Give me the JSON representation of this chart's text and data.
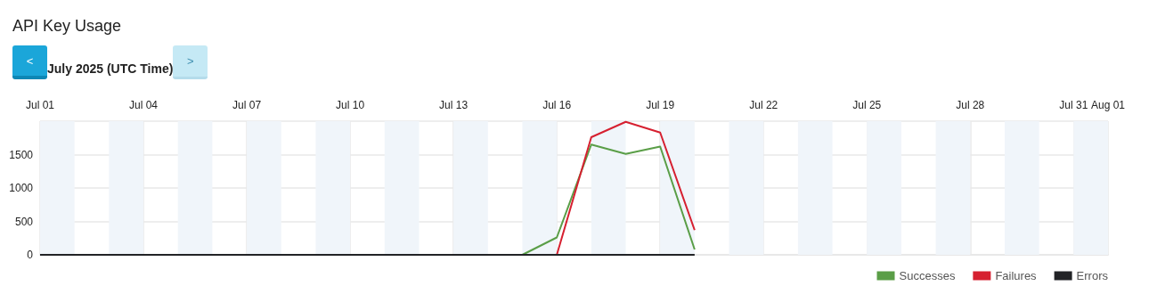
{
  "chart_data": {
    "type": "line",
    "title": "API Key Usage",
    "subtitle": "July 2025 (UTC Time)",
    "annotations": [
      "<",
      ">"
    ],
    "x": [
      "2025-07-01",
      "2025-07-02",
      "2025-07-03",
      "2025-07-04",
      "2025-07-05",
      "2025-07-06",
      "2025-07-07",
      "2025-07-08",
      "2025-07-09",
      "2025-07-10",
      "2025-07-11",
      "2025-07-12",
      "2025-07-13",
      "2025-07-14",
      "2025-07-15",
      "2025-07-16",
      "2025-07-17",
      "2025-07-18",
      "2025-07-19",
      "2025-07-20"
    ],
    "series": [
      {
        "name": "Successes",
        "color": "#5a9e47",
        "values": [
          null,
          null,
          null,
          null,
          null,
          null,
          null,
          null,
          null,
          null,
          null,
          null,
          null,
          null,
          0,
          260,
          1650,
          1510,
          1620,
          80
        ]
      },
      {
        "name": "Failures",
        "color": "#d62030",
        "values": [
          null,
          null,
          null,
          null,
          null,
          null,
          null,
          null,
          null,
          null,
          null,
          null,
          null,
          null,
          null,
          0,
          1760,
          1990,
          1830,
          370
        ]
      },
      {
        "name": "Errors",
        "color": "#222326",
        "values": [
          0,
          0,
          0,
          0,
          0,
          0,
          0,
          0,
          0,
          0,
          0,
          0,
          0,
          0,
          0,
          0,
          0,
          0,
          0,
          0
        ]
      }
    ],
    "xlim": [
      "2025-07-01",
      "2025-08-01"
    ],
    "xticks": [
      {
        "value": "2025-07-01",
        "label": "Jul 01"
      },
      {
        "value": "2025-07-04",
        "label": "Jul 04"
      },
      {
        "value": "2025-07-07",
        "label": "Jul 07"
      },
      {
        "value": "2025-07-10",
        "label": "Jul 10"
      },
      {
        "value": "2025-07-13",
        "label": "Jul 13"
      },
      {
        "value": "2025-07-16",
        "label": "Jul 16"
      },
      {
        "value": "2025-07-19",
        "label": "Jul 19"
      },
      {
        "value": "2025-07-22",
        "label": "Jul 22"
      },
      {
        "value": "2025-07-25",
        "label": "Jul 25"
      },
      {
        "value": "2025-07-28",
        "label": "Jul 28"
      },
      {
        "value": "2025-07-31",
        "label": "Jul 31"
      },
      {
        "value": "2025-08-01",
        "label": "Aug 01"
      }
    ],
    "ylim": [
      0,
      2000
    ],
    "yticks": [
      0,
      500,
      1000,
      1500,
      {
        "value": 2000,
        "label": null
      }
    ],
    "bands": [
      {
        "axis": "x",
        "from": "2025-07-01",
        "to": "2025-07-02",
        "color": "#f0f5fa"
      },
      {
        "axis": "x",
        "from": "2025-07-03",
        "to": "2025-07-04",
        "color": "#f0f5fa"
      },
      {
        "axis": "x",
        "from": "2025-07-05",
        "to": "2025-07-06",
        "color": "#f0f5fa"
      },
      {
        "axis": "x",
        "from": "2025-07-07",
        "to": "2025-07-08",
        "color": "#f0f5fa"
      },
      {
        "axis": "x",
        "from": "2025-07-09",
        "to": "2025-07-10",
        "color": "#f0f5fa"
      },
      {
        "axis": "x",
        "from": "2025-07-11",
        "to": "2025-07-12",
        "color": "#f0f5fa"
      },
      {
        "axis": "x",
        "from": "2025-07-13",
        "to": "2025-07-14",
        "color": "#f0f5fa"
      },
      {
        "axis": "x",
        "from": "2025-07-15",
        "to": "2025-07-16",
        "color": "#f0f5fa"
      },
      {
        "axis": "x",
        "from": "2025-07-17",
        "to": "2025-07-18",
        "color": "#f0f5fa"
      },
      {
        "axis": "x",
        "from": "2025-07-19",
        "to": "2025-07-20",
        "color": "#f0f5fa"
      },
      {
        "axis": "x",
        "from": "2025-07-21",
        "to": "2025-07-22",
        "color": "#f0f5fa"
      },
      {
        "axis": "x",
        "from": "2025-07-23",
        "to": "2025-07-24",
        "color": "#f0f5fa"
      },
      {
        "axis": "x",
        "from": "2025-07-25",
        "to": "2025-07-26",
        "color": "#f0f5fa"
      },
      {
        "axis": "x",
        "from": "2025-07-27",
        "to": "2025-07-28",
        "color": "#f0f5fa"
      },
      {
        "axis": "x",
        "from": "2025-07-29",
        "to": "2025-07-30",
        "color": "#f0f5fa"
      },
      {
        "axis": "x",
        "from": "2025-07-31",
        "to": "2025-08-01",
        "color": "#f0f5fa"
      }
    ],
    "grid": true,
    "legend": "bottom right",
    "marker": "none",
    "line_style": "solid"
  }
}
